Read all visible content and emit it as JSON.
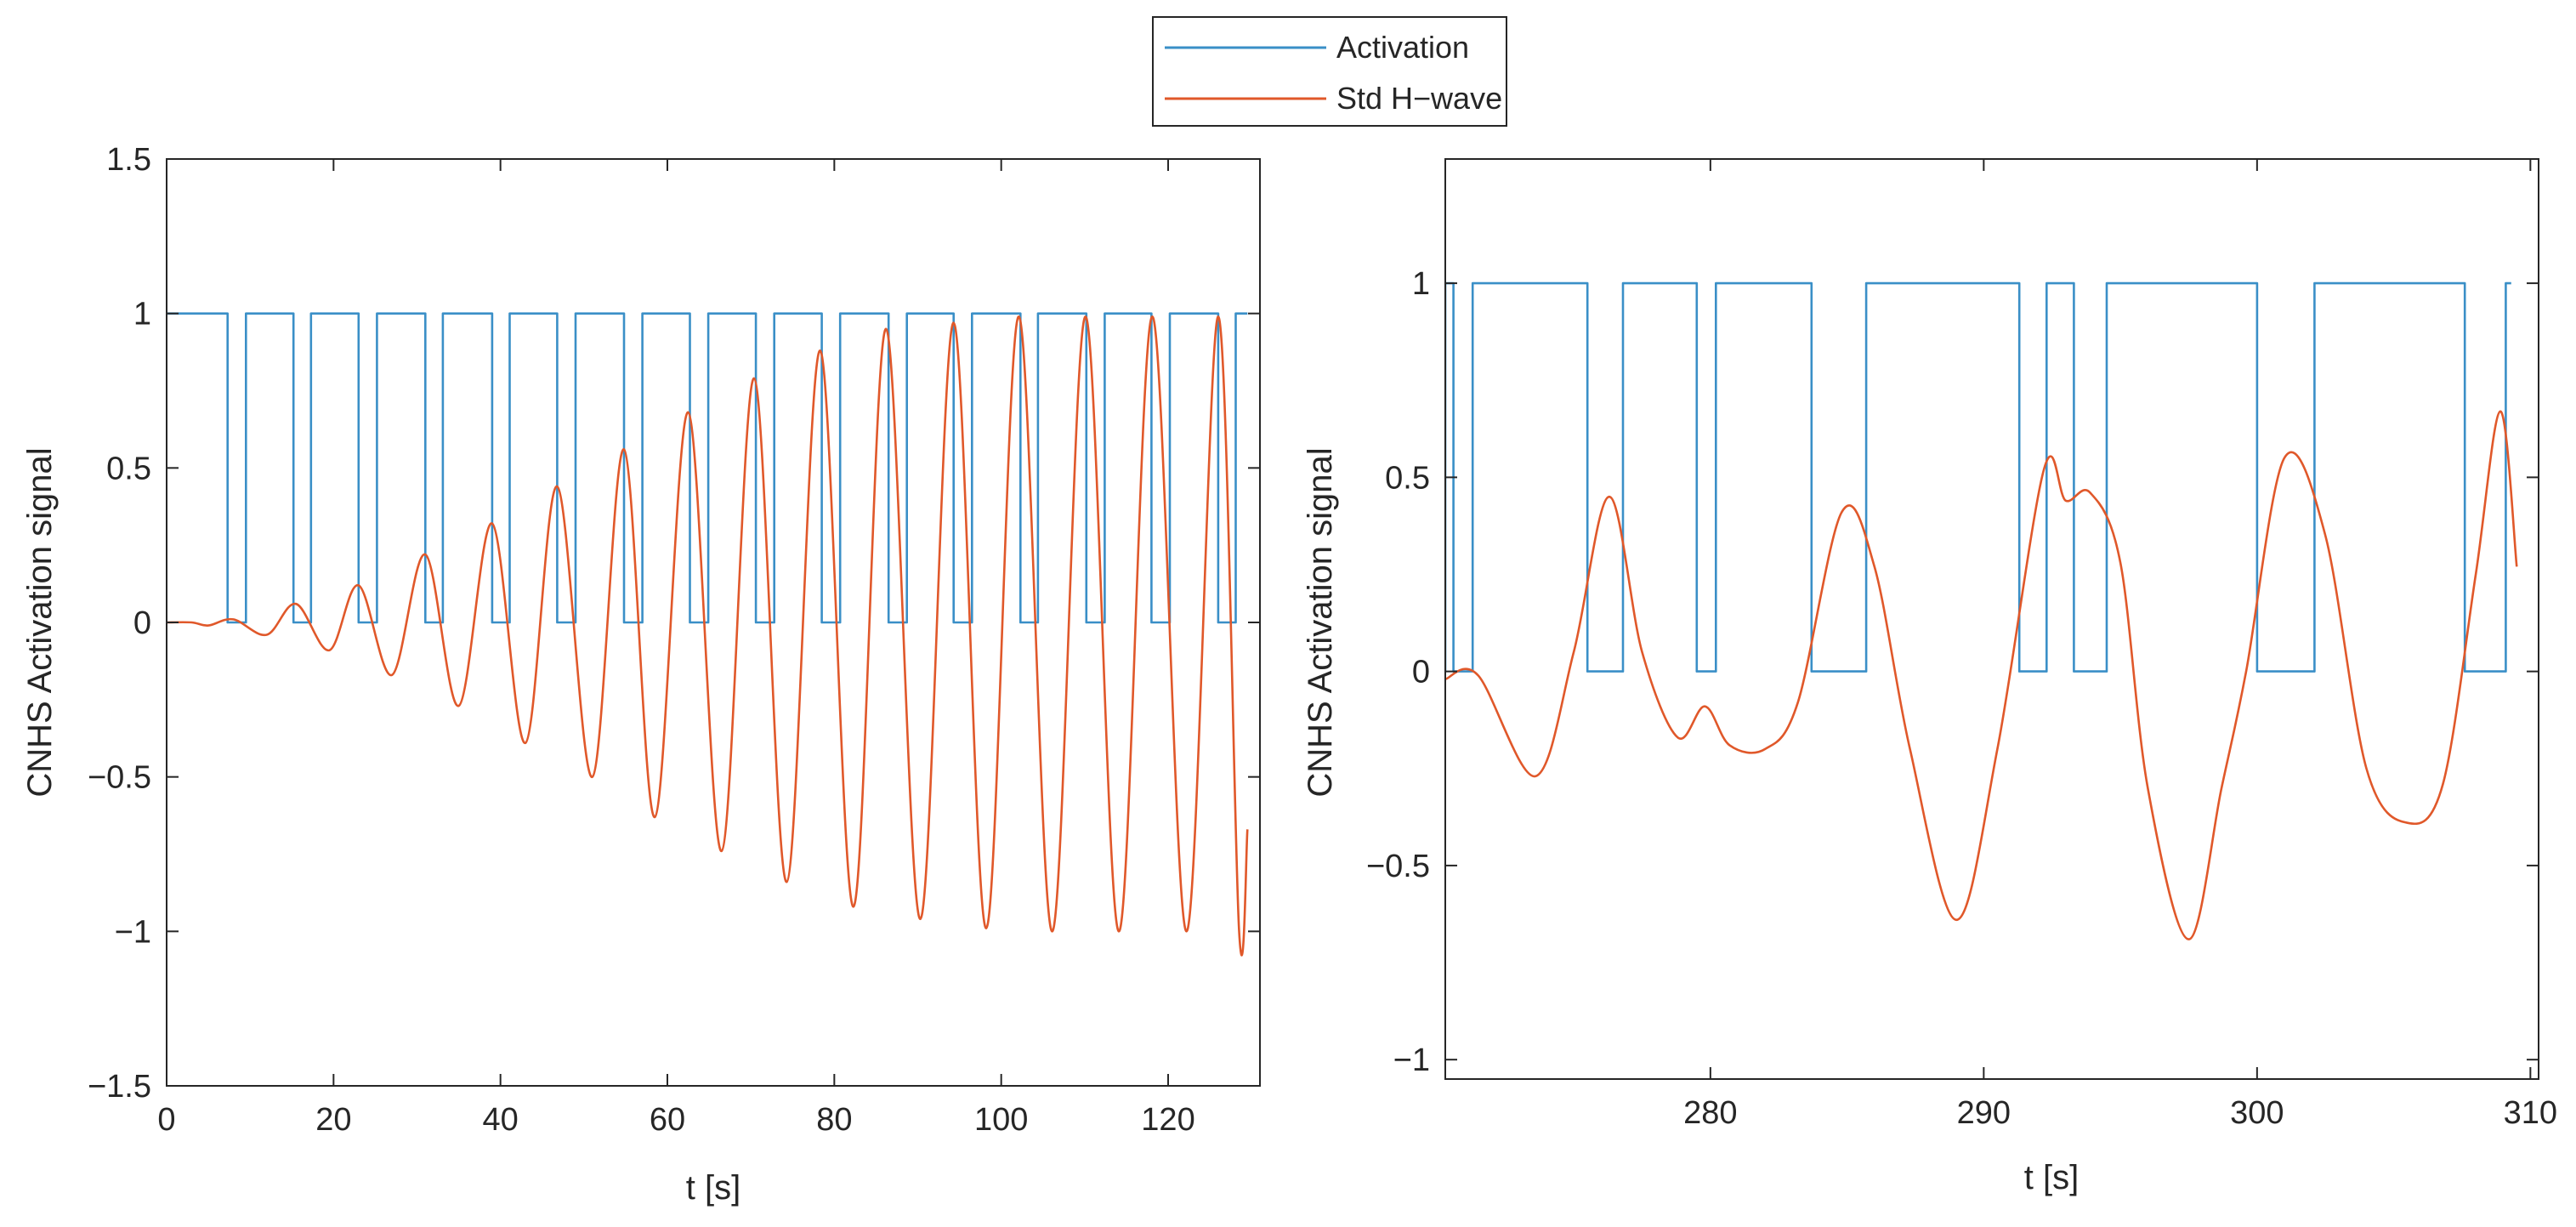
{
  "legend": {
    "entries": [
      {
        "label": "Activation",
        "color": "#3a8fc7"
      },
      {
        "label": "Std H−wave",
        "color": "#e0582a"
      }
    ]
  },
  "chart_data": [
    {
      "type": "line",
      "title": "",
      "xlabel": "t [s]",
      "ylabel": "CNHS Activation signal",
      "xlim": [
        0,
        131
      ],
      "ylim": [
        -1.5,
        1.5
      ],
      "xticks": [
        0,
        20,
        40,
        60,
        80,
        100,
        120
      ],
      "yticks": [
        1.5,
        1,
        0.5,
        0,
        -0.5,
        -1,
        -1.5
      ],
      "ytick_labels": [
        "1.5",
        "1",
        "0.5",
        "0",
        "−0.5",
        "−1",
        "−1.5"
      ],
      "grid": false,
      "legend_position": "top-center",
      "series": [
        {
          "name": "Activation",
          "color": "#3a8fc7",
          "step": true,
          "x": [
            0,
            7.3,
            7.3,
            9.5,
            9.5,
            15.2,
            15.2,
            17.3,
            17.3,
            23.0,
            23.0,
            25.2,
            25.2,
            31.0,
            31.0,
            33.1,
            33.1,
            39.0,
            39.0,
            41.1,
            41.1,
            46.8,
            46.8,
            49.0,
            49.0,
            54.8,
            54.8,
            57.0,
            57.0,
            62.7,
            62.7,
            64.9,
            64.9,
            70.6,
            70.6,
            72.8,
            72.8,
            78.5,
            78.5,
            80.7,
            80.7,
            86.5,
            86.5,
            88.7,
            88.7,
            94.3,
            94.3,
            96.5,
            96.5,
            102.3,
            102.3,
            104.4,
            104.4,
            110.2,
            110.2,
            112.4,
            112.4,
            118.0,
            118.0,
            120.2,
            120.2,
            126.0,
            126.0,
            128.1,
            128.1,
            129.5
          ],
          "y": [
            1,
            1,
            0,
            0,
            1,
            1,
            0,
            0,
            1,
            1,
            0,
            0,
            1,
            1,
            0,
            0,
            1,
            1,
            0,
            0,
            1,
            1,
            0,
            0,
            1,
            1,
            0,
            0,
            1,
            1,
            0,
            0,
            1,
            1,
            0,
            0,
            1,
            1,
            0,
            0,
            1,
            1,
            0,
            0,
            1,
            1,
            0,
            0,
            1,
            1,
            0,
            0,
            1,
            1,
            0,
            0,
            1,
            1,
            0,
            0,
            1,
            1,
            0,
            0,
            1,
            1
          ]
        },
        {
          "name": "Std H−wave",
          "color": "#e0582a",
          "x": [
            0,
            3,
            5,
            8,
            12,
            15.5,
            19.5,
            23,
            27,
            31,
            35,
            39,
            43,
            46.8,
            51,
            54.8,
            58.5,
            62.5,
            66.5,
            70.4,
            74.3,
            78.3,
            82.3,
            86.2,
            90.3,
            94.3,
            98.2,
            102.1,
            106.1,
            110.1,
            114.1,
            118.1,
            122.2,
            126.0,
            128.5,
            129.5
          ],
          "y": [
            0,
            0,
            -0.01,
            0.01,
            -0.04,
            0.06,
            -0.09,
            0.12,
            -0.17,
            0.22,
            -0.27,
            0.32,
            -0.39,
            0.44,
            -0.5,
            0.56,
            -0.63,
            0.68,
            -0.74,
            0.79,
            -0.84,
            0.88,
            -0.92,
            0.95,
            -0.96,
            0.97,
            -0.99,
            0.99,
            -1.0,
            0.99,
            -1.0,
            0.99,
            -1.0,
            0.99,
            -1.0,
            -0.67
          ]
        }
      ]
    },
    {
      "type": "line",
      "title": "",
      "xlabel": "t [s]",
      "ylabel": "CNHS Activation signal",
      "xlim": [
        270.3,
        310.3
      ],
      "ylim": [
        -1.05,
        1.32
      ],
      "xticks": [
        280,
        290,
        300,
        310
      ],
      "yticks": [
        1,
        0.5,
        0,
        -0.5,
        -1
      ],
      "ytick_labels": [
        "1",
        "0.5",
        "0",
        "−0.5",
        "−1"
      ],
      "grid": false,
      "series": [
        {
          "name": "Activation",
          "color": "#3a8fc7",
          "step": true,
          "x": [
            270.3,
            270.3,
            270.6,
            270.6,
            270.8,
            270.8,
            271.3,
            271.3,
            275.5,
            275.5,
            276.8,
            276.8,
            279.5,
            279.5,
            280.2,
            280.2,
            283.7,
            283.7,
            285.7,
            285.7,
            291.3,
            291.3,
            292.3,
            292.3,
            293.3,
            293.3,
            294.5,
            294.5,
            300.0,
            300.0,
            302.1,
            302.1,
            307.6,
            307.6,
            309.1,
            309.1,
            309.3
          ],
          "y": [
            0,
            1,
            1,
            0,
            0,
            0,
            0,
            1,
            1,
            0,
            0,
            1,
            1,
            0,
            0,
            1,
            1,
            0,
            0,
            1,
            1,
            0,
            0,
            1,
            1,
            0,
            0,
            1,
            1,
            0,
            0,
            1,
            1,
            0,
            0,
            1,
            1
          ]
        },
        {
          "name": "Std H−wave",
          "color": "#e0582a",
          "x": [
            270.3,
            271.5,
            273.6,
            275.0,
            276.3,
            277.5,
            278.8,
            279.8,
            280.7,
            282.0,
            283.2,
            284.8,
            286.0,
            287.3,
            289.0,
            290.5,
            292.2,
            293.0,
            293.9,
            295.0,
            296.0,
            297.5,
            298.7,
            299.6,
            301.0,
            302.5,
            304.0,
            305.5,
            306.8,
            308.0,
            308.9,
            309.5
          ],
          "y": [
            -0.02,
            -0.01,
            -0.27,
            0.05,
            0.45,
            0.05,
            -0.17,
            -0.09,
            -0.19,
            -0.2,
            -0.08,
            0.41,
            0.27,
            -0.2,
            -0.64,
            -0.2,
            0.52,
            0.44,
            0.46,
            0.28,
            -0.3,
            -0.69,
            -0.3,
            0.0,
            0.55,
            0.35,
            -0.25,
            -0.39,
            -0.29,
            0.25,
            0.67,
            0.27
          ]
        }
      ]
    }
  ]
}
